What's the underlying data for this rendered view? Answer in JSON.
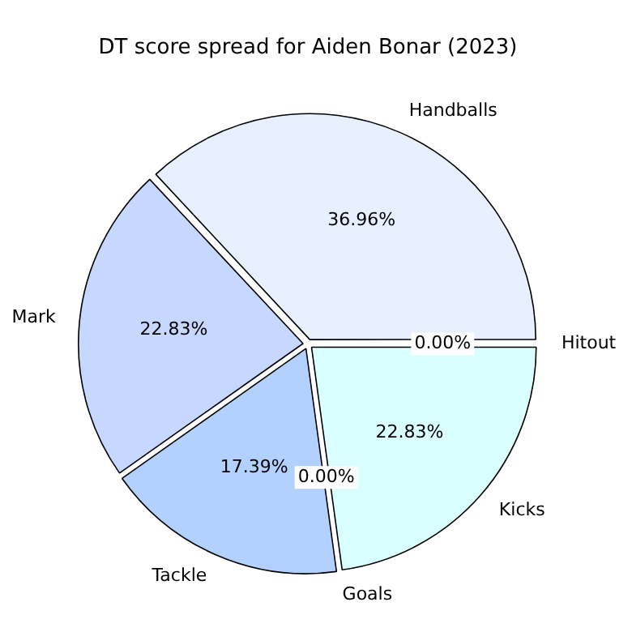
{
  "chart_data": {
    "type": "pie",
    "title": "DT score spread for Aiden Bonar (2023)",
    "categories": [
      "Handballs",
      "Mark",
      "Tackle",
      "Goals",
      "Kicks",
      "Hitout"
    ],
    "values": [
      36.96,
      22.83,
      17.39,
      0.0,
      22.83,
      0.0
    ],
    "value_labels": [
      "36.96%",
      "22.83%",
      "17.39%",
      "0.00%",
      "22.83%",
      "0.00%"
    ],
    "colors": [
      "#e8f0ff",
      "#c6d8ff",
      "#b3d1ff",
      "#a0c4ff",
      "#d9ffff",
      "#cce6ff"
    ],
    "legend": false
  }
}
